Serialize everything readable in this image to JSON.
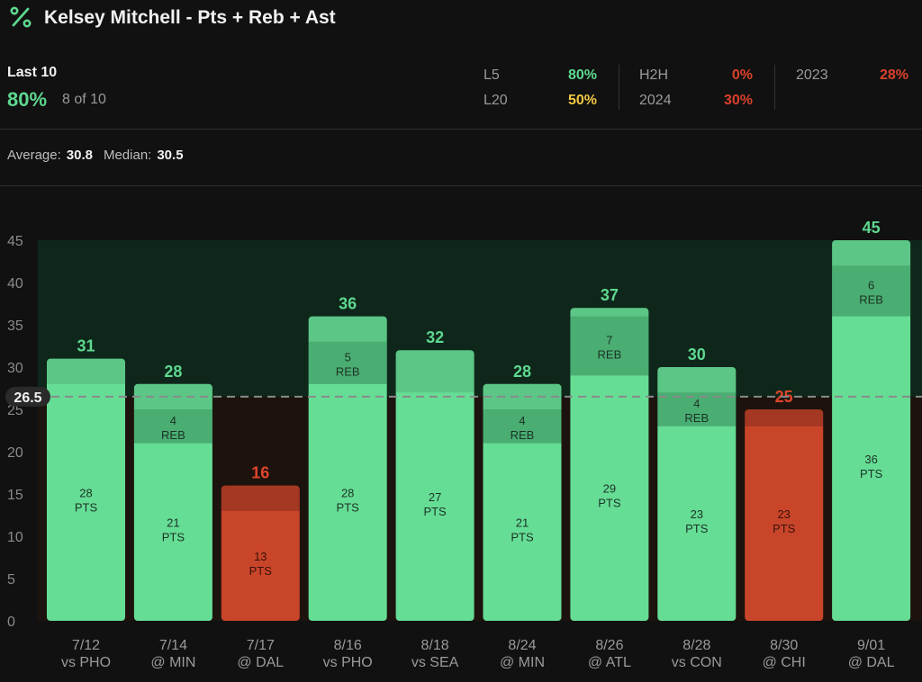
{
  "header": {
    "title": "Kelsey Mitchell - Pts + Reb + Ast",
    "icon": "percent-icon"
  },
  "summary": {
    "last_label": "Last 10",
    "last_pct": "80%",
    "last_of": "8 of 10",
    "stats": [
      {
        "label": "L5",
        "value": "80%",
        "color": "#5ed88f"
      },
      {
        "label": "L20",
        "value": "50%",
        "color": "#f2c744"
      },
      {
        "label": "H2H",
        "value": "0%",
        "color": "#d9412a"
      },
      {
        "label": "2024",
        "value": "30%",
        "color": "#d9412a"
      },
      {
        "label": "2023",
        "value": "28%",
        "color": "#d9412a"
      }
    ]
  },
  "averages": {
    "average_label": "Average:",
    "average": "30.8",
    "median_label": "Median:",
    "median": "30.5"
  },
  "colors": {
    "over": "#66dd95",
    "under": "#c9452a",
    "over_text": "#5ed88f",
    "under_text": "#e0452b"
  },
  "chart_data": {
    "type": "bar",
    "line": 26.5,
    "line_label": "26.5",
    "ylim": [
      0,
      45
    ],
    "yticks": [
      0,
      5,
      10,
      15,
      20,
      25,
      30,
      35,
      40,
      45
    ],
    "categories": [
      {
        "date": "7/12",
        "opp": "vs PHO"
      },
      {
        "date": "7/14",
        "opp": "@ MIN"
      },
      {
        "date": "7/17",
        "opp": "@ DAL"
      },
      {
        "date": "8/16",
        "opp": "vs PHO"
      },
      {
        "date": "8/18",
        "opp": "vs SEA"
      },
      {
        "date": "8/24",
        "opp": "@ MIN"
      },
      {
        "date": "8/26",
        "opp": "@ ATL"
      },
      {
        "date": "8/28",
        "opp": "vs CON"
      },
      {
        "date": "8/30",
        "opp": "@ CHI"
      },
      {
        "date": "9/01",
        "opp": "@ DAL"
      }
    ],
    "totals": [
      31,
      28,
      16,
      36,
      32,
      28,
      37,
      30,
      25,
      45
    ],
    "pts": [
      28,
      21,
      13,
      28,
      27,
      21,
      29,
      23,
      23,
      36
    ],
    "reb": [
      null,
      4,
      null,
      5,
      null,
      4,
      7,
      4,
      null,
      6
    ],
    "pts_label": "PTS",
    "reb_label": "REB"
  }
}
